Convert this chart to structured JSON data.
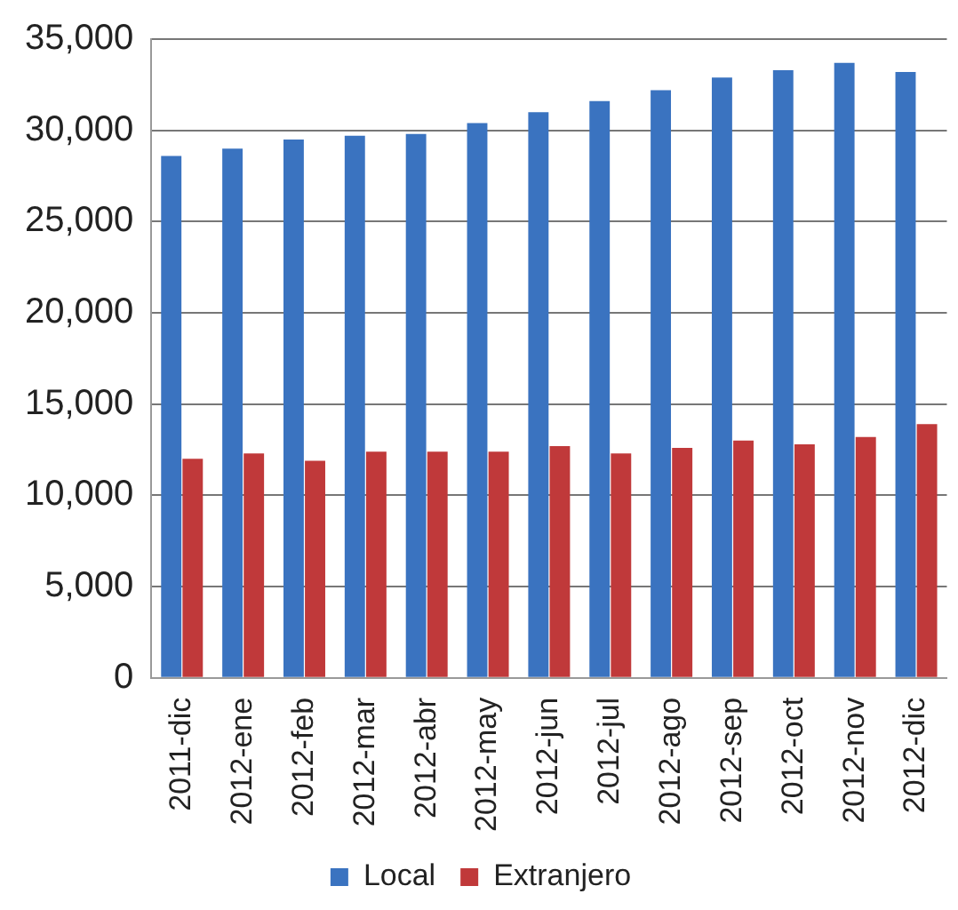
{
  "chart_data": {
    "type": "bar",
    "categories": [
      "2011-dic",
      "2012-ene",
      "2012-feb",
      "2012-mar",
      "2012-abr",
      "2012-may",
      "2012-jun",
      "2012-jul",
      "2012-ago",
      "2012-sep",
      "2012-oct",
      "2012-nov",
      "2012-dic"
    ],
    "series": [
      {
        "name": "Local",
        "color": "#3a73c0",
        "values": [
          28600,
          29000,
          29500,
          29700,
          29800,
          30400,
          31000,
          31600,
          32200,
          32900,
          33300,
          33700,
          33200
        ]
      },
      {
        "name": "Extranjero",
        "color": "#c0393a",
        "values": [
          12000,
          12300,
          11900,
          12400,
          12400,
          12400,
          12700,
          12300,
          12600,
          13000,
          12800,
          13200,
          13900
        ]
      }
    ],
    "ylim": [
      0,
      35000
    ],
    "yticks": [
      {
        "value": 0,
        "label": "0"
      },
      {
        "value": 5000,
        "label": "5,000"
      },
      {
        "value": 10000,
        "label": "10,000"
      },
      {
        "value": 15000,
        "label": "15,000"
      },
      {
        "value": 20000,
        "label": "20,000"
      },
      {
        "value": 25000,
        "label": "25,000"
      },
      {
        "value": 30000,
        "label": "30,000"
      },
      {
        "value": 35000,
        "label": "35,000"
      }
    ],
    "grid": "y",
    "legend": "bottom"
  }
}
